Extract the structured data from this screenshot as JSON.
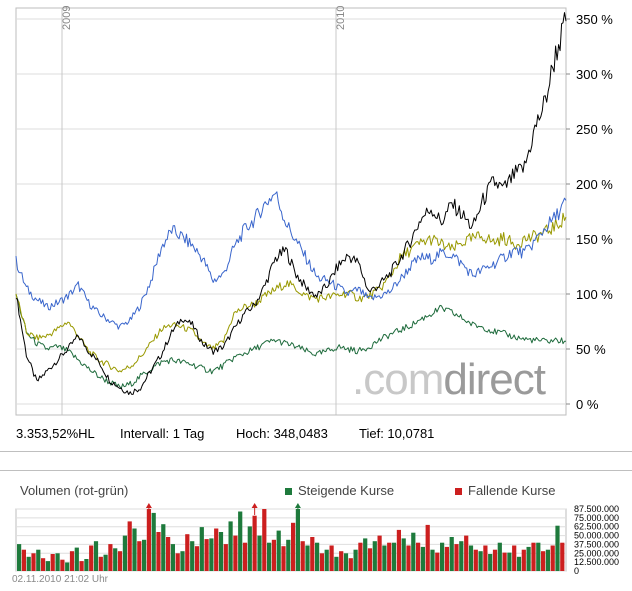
{
  "chart_data": [
    {
      "type": "line",
      "ylim": [
        -10,
        360
      ],
      "y_ticks": [
        0,
        50,
        100,
        150,
        200,
        250,
        300,
        350
      ],
      "y_tick_labels": [
        "0 %",
        "50 %",
        "100 %",
        "150 %",
        "200 %",
        "250 %",
        "300 %",
        "350 %"
      ],
      "x_tick_labels": [
        "2009",
        "2010"
      ],
      "grid": true,
      "series": [
        {
          "color": "#000000",
          "values": [
            100,
            45,
            20,
            30,
            40,
            50,
            62,
            48,
            38,
            22,
            15,
            10,
            15,
            30,
            45,
            65,
            78,
            72,
            55,
            48,
            52,
            68,
            82,
            90,
            108,
            132,
            140,
            118,
            105,
            98,
            108,
            125,
            135,
            128,
            102,
            108,
            118,
            132,
            148,
            168,
            178,
            165,
            182,
            172,
            160,
            185,
            202,
            195,
            208,
            215,
            250,
            275,
            318,
            348
          ]
        },
        {
          "color": "#3a66cc",
          "values": [
            130,
            105,
            95,
            88,
            92,
            98,
            108,
            92,
            82,
            76,
            70,
            76,
            90,
            112,
            142,
            158,
            152,
            144,
            132,
            112,
            118,
            142,
            158,
            168,
            182,
            192,
            165,
            148,
            132,
            115,
            112,
            106,
            100,
            104,
            95,
            98,
            102,
            113,
            125,
            133,
            132,
            137,
            136,
            127,
            117,
            122,
            127,
            133,
            140,
            137,
            148,
            160,
            170,
            185
          ]
        },
        {
          "color": "#999900",
          "values": [
            100,
            65,
            60,
            62,
            68,
            75,
            62,
            48,
            40,
            35,
            30,
            34,
            43,
            55,
            68,
            72,
            70,
            66,
            55,
            50,
            57,
            82,
            88,
            91,
            98,
            104,
            110,
            105,
            98,
            96,
            97,
            99,
            101,
            96,
            98,
            104,
            115,
            132,
            140,
            146,
            150,
            145,
            140,
            147,
            150,
            153,
            147,
            151,
            145,
            150,
            152,
            156,
            162,
            170
          ]
        },
        {
          "color": "#1e6b3c",
          "values": [
            100,
            65,
            55,
            50,
            52,
            48,
            40,
            32,
            25,
            20,
            15,
            18,
            25,
            32,
            38,
            40,
            38,
            36,
            32,
            30,
            35,
            42,
            46,
            50,
            55,
            58,
            55,
            52,
            48,
            45,
            48,
            52,
            50,
            48,
            52,
            58,
            63,
            67,
            71,
            77,
            82,
            87,
            83,
            78,
            72,
            70,
            66,
            64,
            61,
            59,
            58,
            57,
            58,
            57
          ]
        }
      ]
    },
    {
      "type": "bar",
      "ylim": [
        0,
        87500000
      ],
      "y_ticks": [
        0,
        12500000,
        25000000,
        37500000,
        50000000,
        62500000,
        75000000,
        87500000
      ],
      "y_tick_labels": [
        "0",
        "12.500.000",
        "25.000.000",
        "37.500.000",
        "50.000.000",
        "62.500.000",
        "75.000.000",
        "87.500.000"
      ],
      "grid": true,
      "series": [
        {
          "name": "Steigende Kurse",
          "color": "#1e7a3c",
          "values": [
            38000000,
            20000000,
            30000000,
            14000000,
            25000000,
            12000000,
            33000000,
            17000000,
            42000000,
            23000000,
            32000000,
            50000000,
            60000000,
            44000000,
            82000000,
            66000000,
            38000000,
            28000000,
            42000000,
            62000000,
            46000000,
            55000000,
            70000000,
            84000000,
            63000000,
            50000000,
            40000000,
            57000000,
            44000000,
            87500000,
            36000000,
            40000000,
            30000000,
            20000000,
            25000000,
            30000000,
            46000000,
            42000000,
            36000000,
            40000000,
            46000000,
            54000000,
            34000000,
            30000000,
            40000000,
            48000000,
            42000000,
            36000000,
            28000000,
            24000000,
            40000000,
            26000000,
            20000000,
            34000000,
            40000000,
            30000000,
            64000000
          ]
        },
        {
          "name": "Fallende Kurse",
          "color": "#cc1f1f",
          "values": [
            30000000,
            25000000,
            18000000,
            24000000,
            16000000,
            28000000,
            14000000,
            36000000,
            20000000,
            38000000,
            28000000,
            70000000,
            42000000,
            87500000,
            55000000,
            48000000,
            25000000,
            52000000,
            35000000,
            45000000,
            60000000,
            38000000,
            50000000,
            40000000,
            78000000,
            87500000,
            44000000,
            35000000,
            68000000,
            42000000,
            48000000,
            25000000,
            36000000,
            28000000,
            18000000,
            40000000,
            32000000,
            50000000,
            40000000,
            58000000,
            36000000,
            40000000,
            65000000,
            26000000,
            34000000,
            38000000,
            50000000,
            30000000,
            36000000,
            30000000,
            26000000,
            36000000,
            30000000,
            40000000,
            28000000,
            36000000,
            40000000
          ]
        }
      ]
    }
  ],
  "stats": {
    "hl": "3.353,52%HL",
    "interval": "Intervall: 1 Tag",
    "high": "Hoch: 348,0483",
    "low": "Tief: 10,0781"
  },
  "volume": {
    "title": "Volumen (rot-grün)",
    "legend_rising": "Steigende Kurse",
    "legend_falling": "Fallende Kurse",
    "rising_color": "#1e7a3c",
    "falling_color": "#cc1f1f"
  },
  "timestamp": "02.11.2010 21:02 Uhr",
  "watermark": {
    "part1": ".com",
    "part2": "direct"
  }
}
